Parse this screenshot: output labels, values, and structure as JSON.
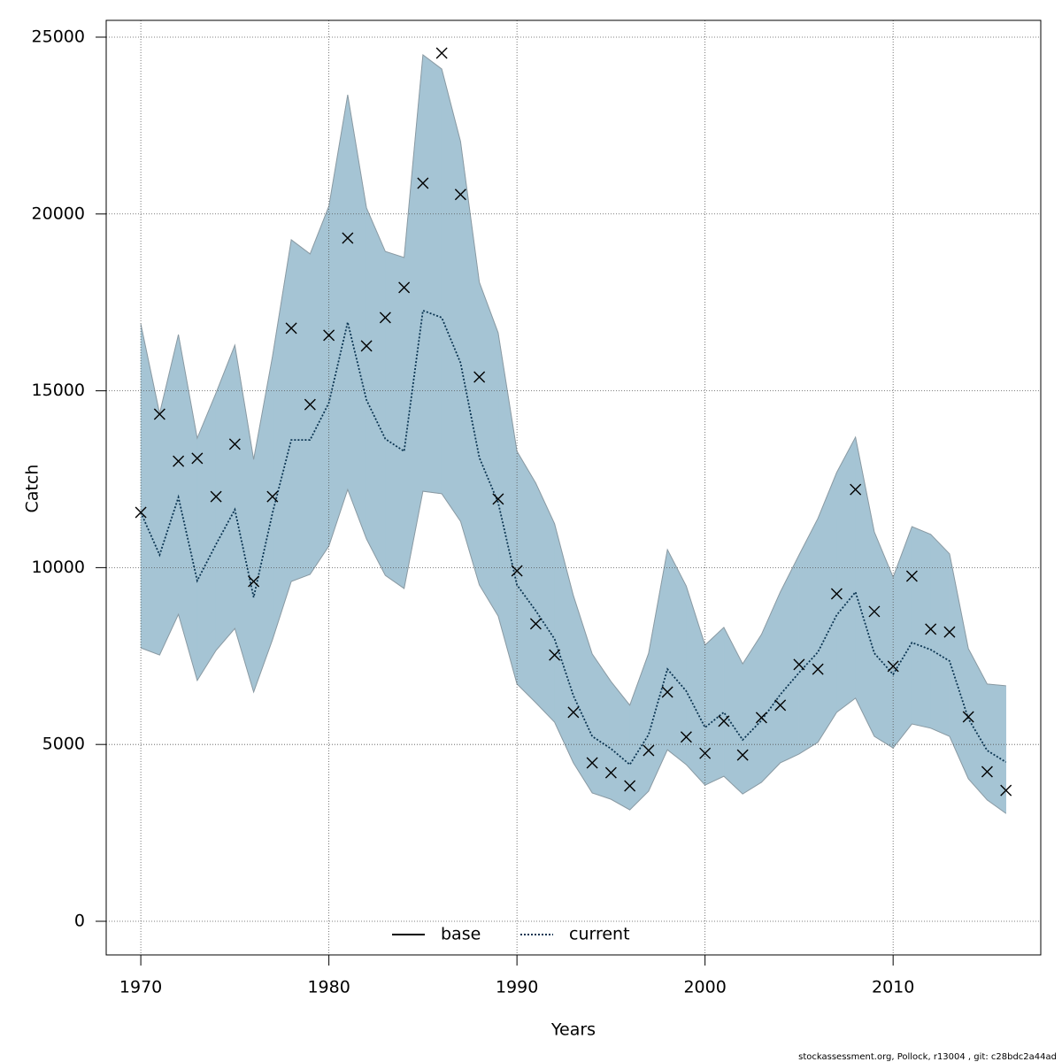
{
  "chart_data": {
    "type": "line",
    "x_label": "Years",
    "y_label": "Catch",
    "footnote": "stockassessment.org, Pollock, r13004 , git: c28bdc2a44ad",
    "x": [
      1970,
      1971,
      1972,
      1973,
      1974,
      1975,
      1976,
      1977,
      1978,
      1979,
      1980,
      1981,
      1982,
      1983,
      1984,
      1985,
      1986,
      1987,
      1988,
      1989,
      1990,
      1991,
      1992,
      1993,
      1994,
      1995,
      1996,
      1997,
      1998,
      1999,
      2000,
      2001,
      2002,
      2003,
      2004,
      2005,
      2006,
      2007,
      2008,
      2009,
      2010,
      2011,
      2012,
      2013,
      2014,
      2015,
      2016
    ],
    "points": [
      11560,
      14340,
      13010,
      13090,
      12010,
      13490,
      9610,
      12010,
      16770,
      14610,
      16570,
      19320,
      16270,
      17070,
      17920,
      20870,
      24550,
      20550,
      15390,
      11940,
      9910,
      8410,
      7530,
      5910,
      4480,
      4200,
      3830,
      4830,
      6480,
      5210,
      4750,
      5660,
      4700,
      5760,
      6110,
      7260,
      7130,
      9260,
      12210,
      8760,
      7210,
      9760,
      8260,
      8180,
      5780,
      4230,
      3700
    ],
    "band_upper": [
      16890,
      14360,
      16590,
      13660,
      14940,
      16290,
      13060,
      15970,
      19270,
      18870,
      20220,
      23370,
      20170,
      18940,
      18770,
      24500,
      24100,
      22050,
      18070,
      16640,
      13290,
      12390,
      11240,
      9210,
      7560,
      6780,
      6110,
      7580,
      10510,
      9480,
      7810,
      8310,
      7280,
      8110,
      9310,
      10360,
      11390,
      12690,
      13690,
      11010,
      9730,
      11160,
      10940,
      10390,
      7710,
      6710,
      6660
    ],
    "band_lower": [
      7730,
      7530,
      8680,
      6810,
      7660,
      8280,
      6480,
      7960,
      9610,
      9810,
      10610,
      12210,
      10810,
      9780,
      9410,
      12160,
      12090,
      11310,
      9510,
      8630,
      6710,
      6180,
      5630,
      4480,
      3630,
      3450,
      3150,
      3680,
      4850,
      4430,
      3850,
      4100,
      3600,
      3930,
      4480,
      4730,
      5060,
      5910,
      6310,
      5230,
      4900,
      5580,
      5460,
      5230,
      4030,
      3430,
      3050
    ],
    "band_color": "#a5c4d4",
    "series": [
      {
        "name": "base",
        "color": "#000000",
        "dash": false,
        "values": [
          null,
          null,
          null,
          null,
          null,
          null,
          null,
          null,
          null,
          null,
          null,
          null,
          null,
          null,
          null,
          null,
          null,
          null,
          null,
          null,
          null,
          null,
          null,
          null,
          null,
          null,
          null,
          null,
          null,
          null,
          null,
          null,
          null,
          null,
          null,
          null,
          null,
          null,
          null,
          null,
          null,
          null,
          null,
          null,
          null,
          null,
          null
        ]
      },
      {
        "name": "current",
        "color": "#0b3552",
        "dash": true,
        "values": [
          11560,
          10360,
          11990,
          9630,
          10660,
          11640,
          9160,
          11540,
          13610,
          13610,
          14660,
          16940,
          14740,
          13640,
          13290,
          17270,
          17070,
          15790,
          13110,
          11840,
          9510,
          8780,
          7980,
          6380,
          5230,
          4880,
          4430,
          5280,
          7130,
          6510,
          5480,
          5910,
          5130,
          5680,
          6410,
          7030,
          7610,
          8660,
          9310,
          7580,
          6980,
          7880,
          7680,
          7360,
          5730,
          4830,
          4500
        ]
      }
    ],
    "xlim": [
      1968.16,
      2017.85
    ],
    "ylim": [
      -951,
      25475
    ],
    "xticks": [
      1970,
      1980,
      1990,
      2000,
      2010
    ],
    "yticks": [
      0,
      5000,
      10000,
      15000,
      20000,
      25000
    ],
    "grid": true,
    "legend": "bottom"
  }
}
